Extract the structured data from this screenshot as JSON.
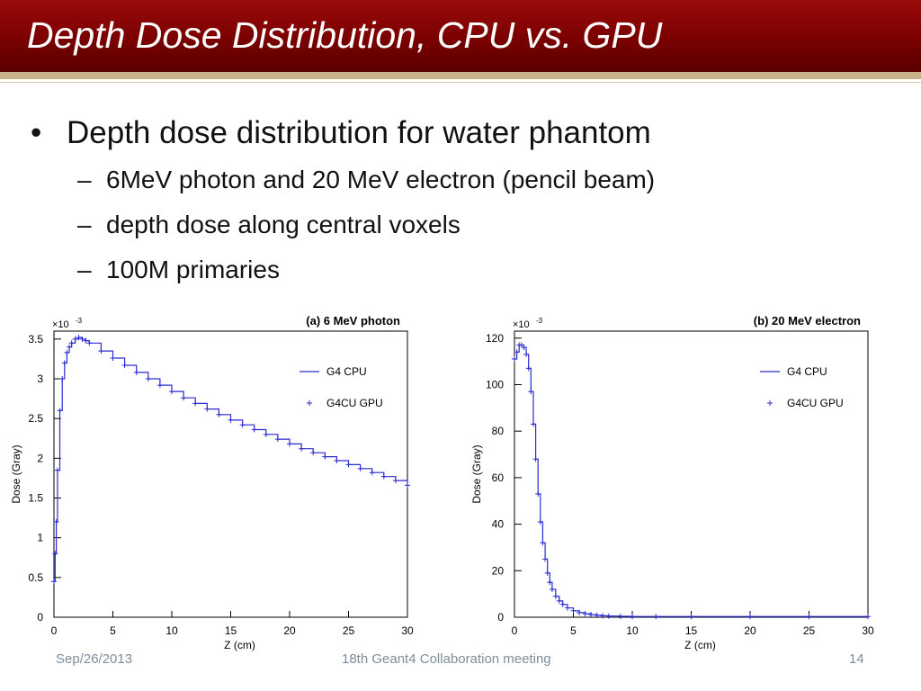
{
  "slide": {
    "title": "Depth Dose Distribution, CPU vs. GPU",
    "bullets": [
      {
        "text": "Depth dose distribution for water phantom",
        "subs": [
          "6MeV photon and 20 MeV electron (pencil beam)",
          "depth dose along central voxels",
          "100M primaries"
        ]
      }
    ]
  },
  "footer": {
    "date": "Sep/26/2013",
    "event": "18th Geant4 Collaboration meeting",
    "page": "14"
  },
  "colors": {
    "header": "#7a0000",
    "accent_bar": "#c9b28a",
    "series": "#2a2ad4"
  },
  "chart_data": [
    {
      "type": "line",
      "title": "(a) 6 MeV photon",
      "xlabel": "Z (cm)",
      "ylabel": "Dose (Gray)",
      "multiplier": "×10",
      "exponent": "-3",
      "xlim": [
        0,
        30
      ],
      "ylim": [
        0,
        3.6
      ],
      "xticks": [
        0,
        5,
        10,
        15,
        20,
        25,
        30
      ],
      "yticks": [
        0,
        0.5,
        1,
        1.5,
        2,
        2.5,
        3,
        3.5
      ],
      "ytick_labels": [
        "0",
        "0.5",
        "1",
        "1.5",
        "2",
        "2.5",
        "3",
        "3.5"
      ],
      "legend_position": "top-right",
      "grid": false,
      "x": [
        0,
        0.1,
        0.2,
        0.3,
        0.5,
        0.7,
        0.9,
        1.1,
        1.3,
        1.5,
        1.8,
        2.1,
        2.4,
        2.7,
        3,
        4,
        5,
        6,
        7,
        8,
        9,
        10,
        11,
        12,
        13,
        14,
        15,
        16,
        17,
        18,
        19,
        20,
        21,
        22,
        23,
        24,
        25,
        26,
        27,
        28,
        29,
        30
      ],
      "series": [
        {
          "name": "G4 CPU",
          "style": "line",
          "values": [
            0.45,
            0.8,
            1.2,
            1.85,
            2.6,
            3.0,
            3.2,
            3.33,
            3.4,
            3.45,
            3.5,
            3.52,
            3.5,
            3.48,
            3.45,
            3.35,
            3.26,
            3.17,
            3.08,
            3.0,
            2.92,
            2.84,
            2.76,
            2.69,
            2.62,
            2.55,
            2.48,
            2.42,
            2.36,
            2.3,
            2.24,
            2.18,
            2.12,
            2.07,
            2.02,
            1.97,
            1.92,
            1.87,
            1.82,
            1.77,
            1.72,
            1.66
          ]
        },
        {
          "name": "G4CU GPU",
          "style": "markers",
          "values": [
            0.45,
            0.8,
            1.2,
            1.85,
            2.6,
            3.0,
            3.2,
            3.33,
            3.4,
            3.45,
            3.5,
            3.52,
            3.5,
            3.48,
            3.45,
            3.35,
            3.26,
            3.17,
            3.08,
            3.0,
            2.92,
            2.84,
            2.76,
            2.69,
            2.62,
            2.55,
            2.48,
            2.42,
            2.36,
            2.3,
            2.24,
            2.18,
            2.12,
            2.07,
            2.02,
            1.97,
            1.92,
            1.87,
            1.82,
            1.77,
            1.72,
            1.66
          ]
        }
      ]
    },
    {
      "type": "line",
      "title": "(b) 20 MeV electron",
      "xlabel": "Z (cm)",
      "ylabel": "Dose (Gray)",
      "multiplier": "×10",
      "exponent": "-3",
      "xlim": [
        0,
        30
      ],
      "ylim": [
        0,
        123
      ],
      "xticks": [
        0,
        5,
        10,
        15,
        20,
        25,
        30
      ],
      "yticks": [
        0,
        20,
        40,
        60,
        80,
        100,
        120
      ],
      "ytick_labels": [
        "0",
        "20",
        "40",
        "60",
        "80",
        "100",
        "120"
      ],
      "legend_position": "top-right",
      "grid": false,
      "x": [
        0,
        0.2,
        0.4,
        0.6,
        0.8,
        1,
        1.2,
        1.4,
        1.6,
        1.8,
        2,
        2.2,
        2.4,
        2.6,
        2.8,
        3,
        3.2,
        3.5,
        3.8,
        4.1,
        4.5,
        5,
        5.5,
        6,
        6.5,
        7,
        7.5,
        8,
        9,
        10,
        12,
        15,
        20,
        25,
        30
      ],
      "series": [
        {
          "name": "G4 CPU",
          "style": "line",
          "values": [
            111,
            114,
            117,
            117,
            116,
            113,
            107,
            97,
            83,
            68,
            53,
            41,
            32,
            25,
            19,
            15,
            12,
            9,
            7,
            5.5,
            4,
            2.8,
            2,
            1.5,
            1.1,
            0.8,
            0.6,
            0.5,
            0.4,
            0.3,
            0.3,
            0.3,
            0.3,
            0.3,
            0.3
          ]
        },
        {
          "name": "G4CU GPU",
          "style": "markers",
          "values": [
            111,
            114,
            117,
            117,
            116,
            113,
            107,
            97,
            83,
            68,
            53,
            41,
            32,
            25,
            19,
            15,
            12,
            9,
            7,
            5.5,
            4,
            2.8,
            2,
            1.5,
            1.1,
            0.8,
            0.6,
            0.5,
            0.4,
            0.3,
            0.3,
            0.3,
            0.3,
            0.3,
            0.3
          ]
        }
      ]
    }
  ]
}
